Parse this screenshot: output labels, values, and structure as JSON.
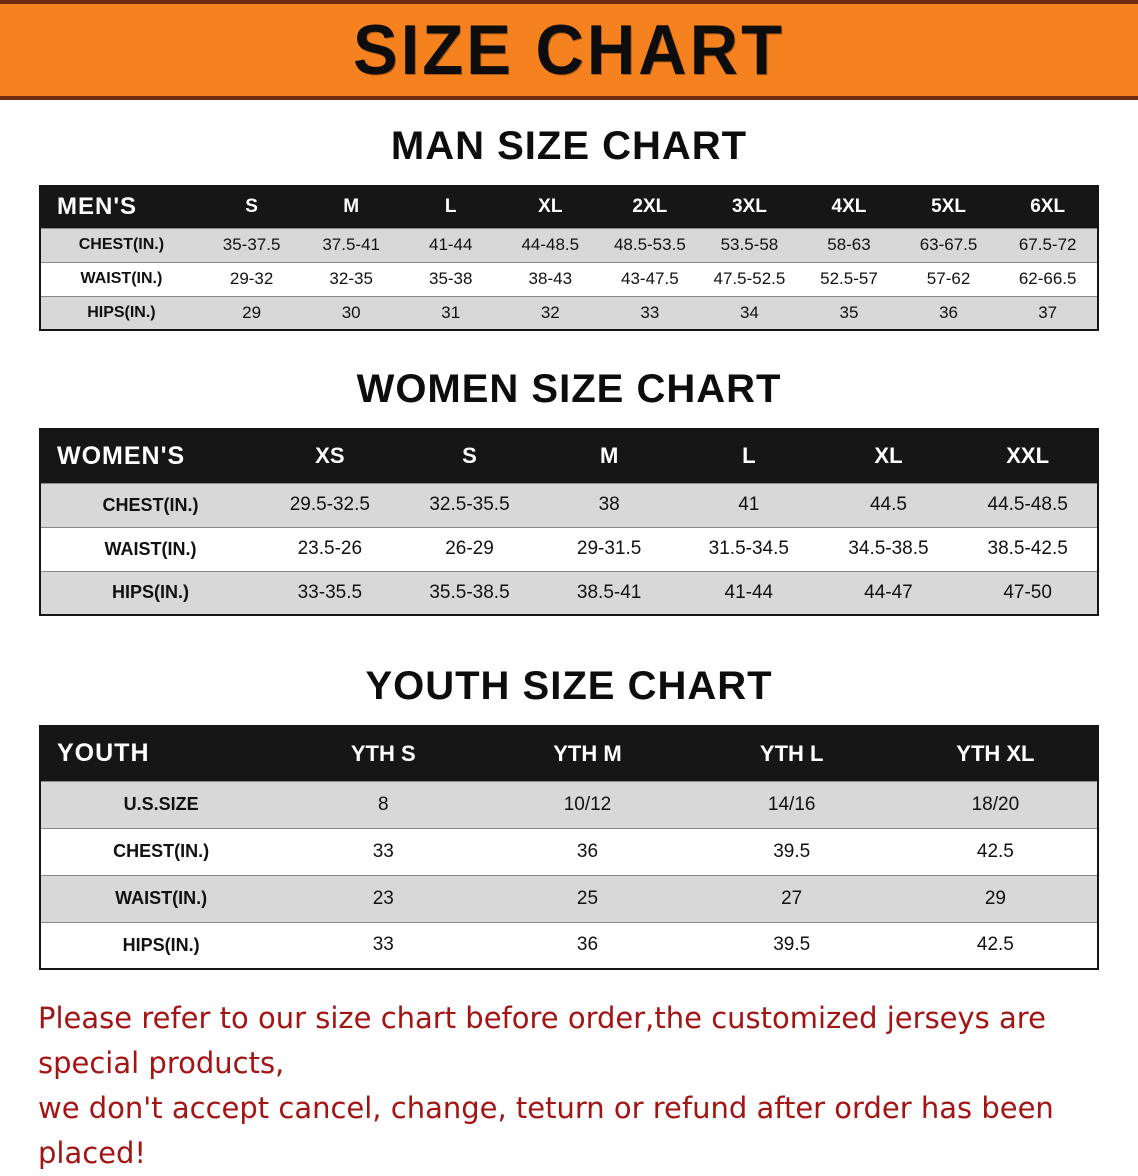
{
  "banner": {
    "title": "SIZE CHART"
  },
  "sections": [
    {
      "heading": "MAN SIZE CHART",
      "table": {
        "header": [
          "MEN'S",
          "S",
          "M",
          "L",
          "XL",
          "2XL",
          "3XL",
          "4XL",
          "5XL",
          "6XL"
        ],
        "rows": [
          [
            "CHEST(IN.)",
            "35-37.5",
            "37.5-41",
            "41-44",
            "44-48.5",
            "48.5-53.5",
            "53.5-58",
            "58-63",
            "63-67.5",
            "67.5-72"
          ],
          [
            "WAIST(IN.)",
            "29-32",
            "32-35",
            "35-38",
            "38-43",
            "43-47.5",
            "47.5-52.5",
            "52.5-57",
            "57-62",
            "62-66.5"
          ],
          [
            "HIPS(IN.)",
            "29",
            "30",
            "31",
            "32",
            "33",
            "34",
            "35",
            "36",
            "37"
          ]
        ]
      }
    },
    {
      "heading": "WOMEN SIZE CHART",
      "table": {
        "header": [
          "WOMEN'S",
          "XS",
          "S",
          "M",
          "L",
          "XL",
          "XXL"
        ],
        "rows": [
          [
            "CHEST(IN.)",
            "29.5-32.5",
            "32.5-35.5",
            "38",
            "41",
            "44.5",
            "44.5-48.5"
          ],
          [
            "WAIST(IN.)",
            "23.5-26",
            "26-29",
            "29-31.5",
            "31.5-34.5",
            "34.5-38.5",
            "38.5-42.5"
          ],
          [
            "HIPS(IN.)",
            "33-35.5",
            "35.5-38.5",
            "38.5-41",
            "41-44",
            "44-47",
            "47-50"
          ]
        ]
      }
    },
    {
      "heading": "YOUTH SIZE CHART",
      "table": {
        "header": [
          "YOUTH",
          "YTH S",
          "YTH M",
          "YTH L",
          "YTH XL"
        ],
        "rows": [
          [
            "U.S.SIZE",
            "8",
            "10/12",
            "14/16",
            "18/20"
          ],
          [
            "CHEST(IN.)",
            "33",
            "36",
            "39.5",
            "42.5"
          ],
          [
            "WAIST(IN.)",
            "23",
            "25",
            "27",
            "29"
          ],
          [
            "HIPS(IN.)",
            "33",
            "36",
            "39.5",
            "42.5"
          ]
        ]
      }
    }
  ],
  "disclaimer": {
    "line1": "Please refer to our size chart before order,the customized jerseys are special products,",
    "line2": "we don't accept cancel, change, teturn or refund after order has been placed!"
  },
  "colors": {
    "banner_orange": "#F5821E",
    "banner_edge": "#6E2B12",
    "header_black": "#161616",
    "row_gray": "#D8D8D8",
    "disclaimer_red": "#A31414"
  }
}
